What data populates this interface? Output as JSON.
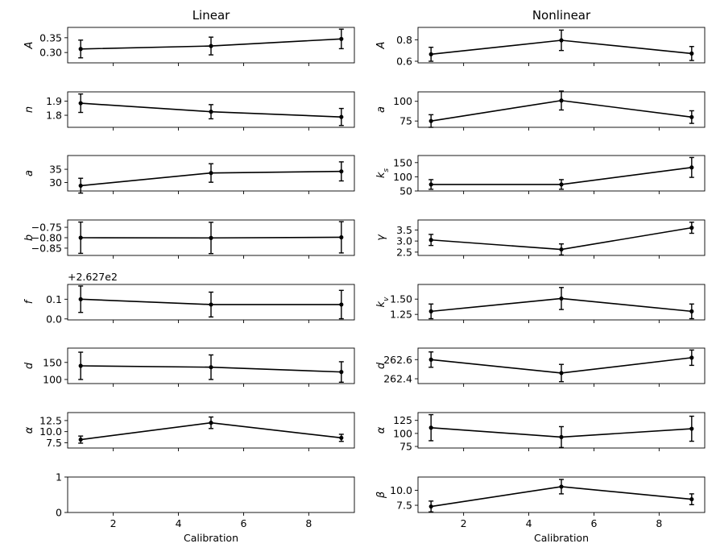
{
  "chart_data": {
    "type": "line",
    "xlabel": "Calibration",
    "x": [
      1,
      5,
      9
    ],
    "xlim": [
      0.6,
      9.4
    ],
    "x_ticks": [
      2,
      4,
      6,
      8
    ],
    "x_tick_labels": [
      "2",
      "4",
      "6",
      "8"
    ],
    "columns": [
      {
        "title": "Linear",
        "panels": [
          {
            "ylabel": "A",
            "ylim": [
              0.265,
              0.385
            ],
            "y_ticks": [
              0.3,
              0.35
            ],
            "y_tick_labels": [
              "0.30",
              "0.35"
            ],
            "values": [
              0.312,
              0.322,
              0.346
            ],
            "errors": [
              0.03,
              0.03,
              0.033
            ]
          },
          {
            "ylabel": "n",
            "ylim": [
              1.715,
              1.965
            ],
            "y_ticks": [
              1.8,
              1.9
            ],
            "y_tick_labels": [
              "1.8",
              "1.9"
            ],
            "values": [
              1.885,
              1.825,
              1.788
            ],
            "errors": [
              0.065,
              0.05,
              0.06
            ]
          },
          {
            "ylabel": "a",
            "ylim": [
              26.8,
              40.2
            ],
            "y_ticks": [
              30,
              35
            ],
            "y_tick_labels": [
              "30",
              "35"
            ],
            "values": [
              28.8,
              33.6,
              34.2
            ],
            "errors": [
              2.8,
              3.5,
              3.6
            ]
          },
          {
            "ylabel": "b",
            "ylim": [
              -0.885,
              -0.715
            ],
            "y_ticks": [
              -0.85,
              -0.8,
              -0.75
            ],
            "y_tick_labels": [
              "−0.85",
              "−0.80",
              "−0.75"
            ],
            "values": [
              -0.8,
              -0.801,
              -0.798
            ],
            "errors": [
              0.075,
              0.075,
              0.075
            ]
          },
          {
            "ylabel": "f",
            "offset_text": "+2.627e2",
            "ylim": [
              -0.005,
              0.175
            ],
            "y_ticks": [
              0.0,
              0.1
            ],
            "y_tick_labels": [
              "0.0",
              "0.1"
            ],
            "values": [
              0.1,
              0.073,
              0.073
            ],
            "errors": [
              0.067,
              0.063,
              0.072
            ]
          },
          {
            "ylabel": "d",
            "ylim": [
              88,
              192
            ],
            "y_ticks": [
              100,
              150
            ],
            "y_tick_labels": [
              "100",
              "150"
            ],
            "values": [
              140,
              136,
              122
            ],
            "errors": [
              40,
              36,
              30
            ]
          },
          {
            "ylabel": "α",
            "ylim": [
              6.3,
              14.3
            ],
            "y_ticks": [
              7.5,
              10.0,
              12.5
            ],
            "y_tick_labels": [
              "7.5",
              "10.0",
              "12.5"
            ],
            "values": [
              8.2,
              12.0,
              8.6
            ],
            "errors": [
              0.8,
              1.3,
              0.8
            ]
          },
          {
            "ylabel": "",
            "ylim": [
              0,
              1
            ],
            "y_ticks": [
              0,
              1
            ],
            "y_tick_labels": [
              "0",
              "1"
            ],
            "values": [],
            "errors": []
          }
        ]
      },
      {
        "title": "Nonlinear",
        "panels": [
          {
            "ylabel": "A",
            "ylim": [
              0.585,
              0.915
            ],
            "y_ticks": [
              0.6,
              0.8
            ],
            "y_tick_labels": [
              "0.6",
              "0.8"
            ],
            "values": [
              0.665,
              0.795,
              0.672
            ],
            "errors": [
              0.065,
              0.095,
              0.065
            ]
          },
          {
            "ylabel": "a",
            "ylim": [
              67,
              112
            ],
            "y_ticks": [
              75,
              100
            ],
            "y_tick_labels": [
              "75",
              "100"
            ],
            "values": [
              75,
              101,
              80
            ],
            "errors": [
              8,
              12,
              8
            ]
          },
          {
            "ylabel": "k_s",
            "ylim": [
              50,
              175
            ],
            "y_ticks": [
              50,
              100,
              150
            ],
            "y_tick_labels": [
              "50",
              "100",
              "150"
            ],
            "values": [
              73,
              73,
              133
            ],
            "errors": [
              17,
              17,
              35
            ]
          },
          {
            "ylabel": "γ",
            "ylim": [
              2.35,
              3.95
            ],
            "y_ticks": [
              2.5,
              3.0,
              3.5
            ],
            "y_tick_labels": [
              "2.5",
              "3.0",
              "3.5"
            ],
            "values": [
              3.05,
              2.62,
              3.6
            ],
            "errors": [
              0.25,
              0.25,
              0.25
            ]
          },
          {
            "ylabel": "k_v",
            "ylim": [
              1.16,
              1.74
            ],
            "y_ticks": [
              1.25,
              1.5
            ],
            "y_tick_labels": [
              "1.25",
              "1.50"
            ],
            "values": [
              1.3,
              1.51,
              1.3
            ],
            "errors": [
              0.12,
              0.18,
              0.12
            ]
          },
          {
            "ylabel": "d",
            "ylim": [
              262.35,
              262.72
            ],
            "y_ticks": [
              262.4,
              262.6
            ],
            "y_tick_labels": [
              "262.4",
              "262.6"
            ],
            "values": [
              262.6,
              262.46,
              262.62
            ],
            "errors": [
              0.08,
              0.09,
              0.08
            ]
          },
          {
            "ylabel": "α",
            "ylim": [
              72,
              140
            ],
            "y_ticks": [
              75,
              100,
              125
            ],
            "y_tick_labels": [
              "75",
              "100",
              "125"
            ],
            "values": [
              111,
              93,
              109
            ],
            "errors": [
              25,
              20,
              24
            ]
          },
          {
            "ylabel": "β",
            "ylim": [
              6.3,
              12.2
            ],
            "y_ticks": [
              7.5,
              10.0
            ],
            "y_tick_labels": [
              "7.5",
              "10.0"
            ],
            "values": [
              7.3,
              10.6,
              8.5
            ],
            "errors": [
              0.9,
              1.2,
              0.9
            ]
          }
        ]
      }
    ]
  }
}
